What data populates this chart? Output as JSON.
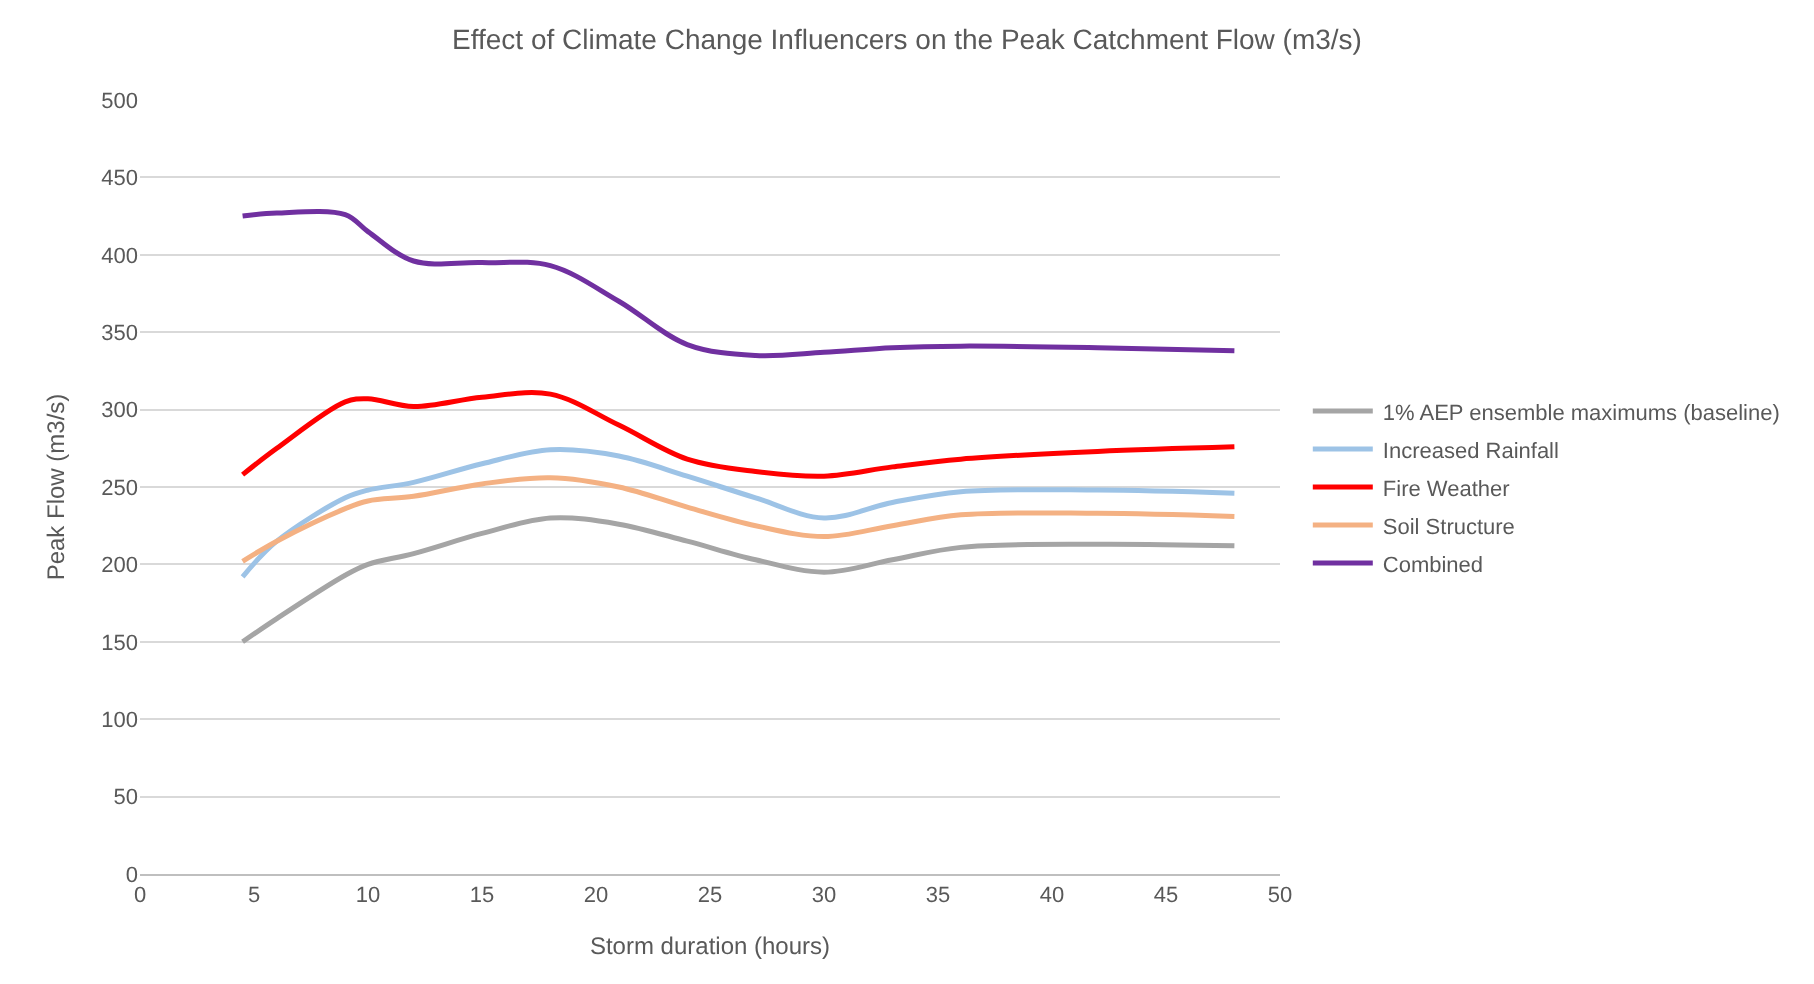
{
  "chart_data": {
    "type": "line",
    "title": "Effect of Climate Change Influencers on the Peak Catchment Flow (m3/s)",
    "xlabel": "Storm duration (hours)",
    "ylabel": "Peak Flow (m3/s)",
    "x": [
      4.5,
      6,
      9,
      10,
      12,
      15,
      18,
      21,
      24,
      27,
      30,
      33,
      36,
      42,
      48
    ],
    "series": [
      {
        "name": "1% AEP ensemble maximums (baseline)",
        "color": "#a5a5a5",
        "values": [
          150,
          165,
          193,
          200,
          207,
          220,
          230,
          226,
          215,
          203,
          195,
          203,
          211,
          213,
          212
        ]
      },
      {
        "name": "Increased Rainfall",
        "color": "#9dc3e6",
        "values": [
          192,
          215,
          243,
          248,
          253,
          265,
          274,
          270,
          257,
          243,
          230,
          240,
          247,
          248,
          246
        ]
      },
      {
        "name": "Fire Weather",
        "color": "#ff0000",
        "values": [
          258,
          275,
          305,
          307,
          302,
          308,
          310,
          290,
          268,
          260,
          257,
          263,
          268,
          273,
          276
        ]
      },
      {
        "name": "Soil Structure",
        "color": "#f4b183",
        "values": [
          202,
          215,
          236,
          241,
          244,
          252,
          256,
          250,
          237,
          225,
          218,
          225,
          232,
          233,
          231
        ]
      },
      {
        "name": "Combined",
        "color": "#7030a0",
        "values": [
          425,
          427,
          426,
          415,
          396,
          395,
          393,
          370,
          342,
          335,
          337,
          340,
          341,
          340,
          338
        ]
      }
    ],
    "xlim": [
      0,
      50
    ],
    "xticks": [
      0,
      5,
      10,
      15,
      20,
      25,
      30,
      35,
      40,
      45,
      50
    ],
    "ylim": [
      0,
      500
    ],
    "yticks": [
      0,
      50,
      100,
      150,
      200,
      250,
      300,
      350,
      400,
      450,
      500
    ],
    "grid": "y",
    "legend": "right",
    "marker": "none",
    "line_style": "solid"
  }
}
